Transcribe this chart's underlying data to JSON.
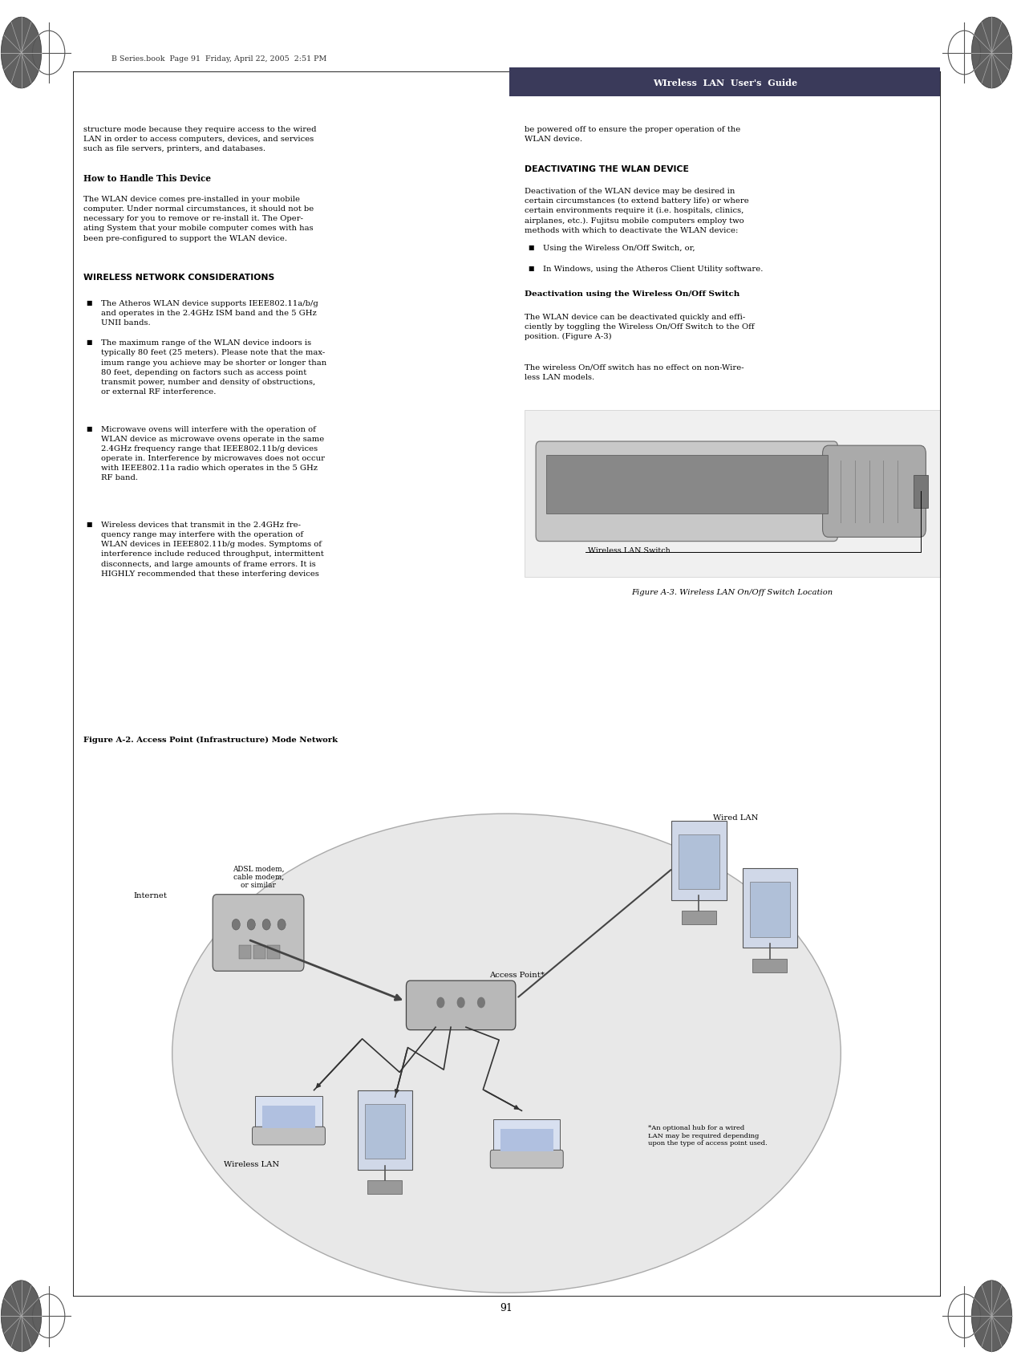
{
  "page_number": "91",
  "header_text": "WIreless  LAN  User's  Guide",
  "header_bar_color": "#3a3a5a",
  "background_color": "#ffffff",
  "top_label": "B Series.book  Page 91  Friday, April 22, 2005  2:51 PM",
  "figure_a3_caption": "Figure A-3. Wireless LAN On/Off Switch Location",
  "figure_a3_label": "Wireless LAN Switch",
  "figure_a2_caption": "Figure A-2. Access Point (Infrastructure) Mode Network",
  "network_labels": {
    "internet": "Internet",
    "adsl": "ADSL modem,\ncable modem,\nor similar",
    "wired_lan": "Wired LAN",
    "access_point": "Access Point*",
    "wireless_lan": "Wireless LAN",
    "footnote": "*An optional hub for a wired\nLAN may be required depending\nupon the type of access point used."
  }
}
